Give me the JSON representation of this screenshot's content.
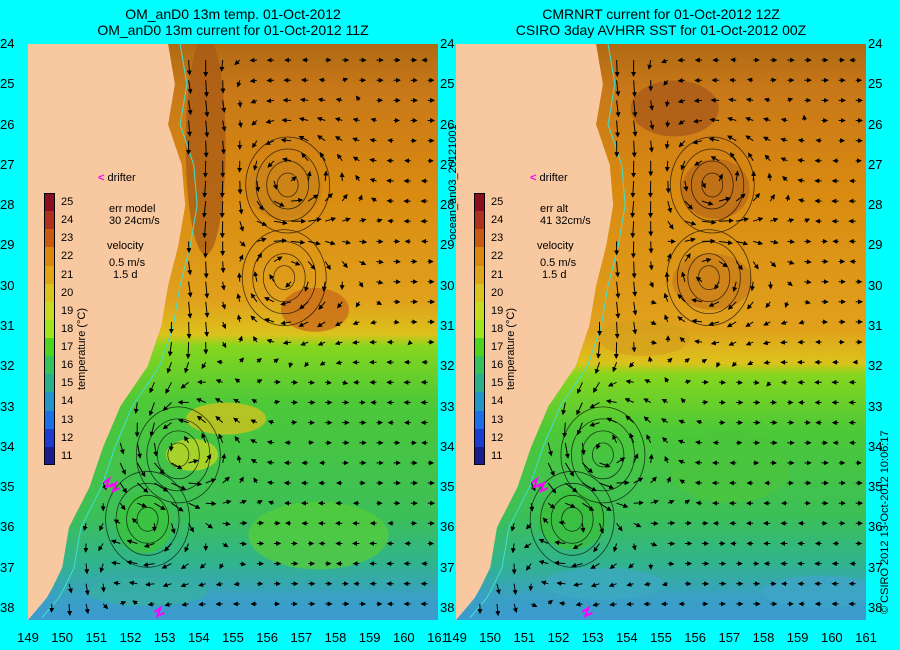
{
  "panels": [
    {
      "title_line1": "OM_anD0 13m temp. 01-Oct-2012",
      "title_line2": "OM_anD0 13m current for 01-Oct-2012 11Z",
      "drifter_label": "drifter",
      "err_line1": "err model",
      "err_line2": "30 24cm/s",
      "velocity_label": "velocity",
      "velocity_scale1": "0.5 m/s",
      "velocity_scale2": "1.5 d",
      "temperature_front_lat": -31.5
    },
    {
      "title_line1": "CMRNRT current for 01-Oct-2012 12Z",
      "title_line2": "CSIRO 3day AVHRR SST for 01-Oct-2012 00Z",
      "drifter_label": "drifter",
      "err_line1": "err alt",
      "err_line2": "41 32cm/s",
      "velocity_label": "velocity",
      "velocity_scale1": "0.5 m/s",
      "velocity_scale2": "1.5 d",
      "temperature_front_lat": -32.2
    }
  ],
  "colorbar": {
    "title": "temperature (°C)",
    "ticks": [
      "25",
      "24",
      "23",
      "22",
      "21",
      "20",
      "19",
      "18",
      "17",
      "16",
      "15",
      "14",
      "13",
      "12",
      "11"
    ],
    "colors": [
      "#8b0f1e",
      "#b0301e",
      "#c85a14",
      "#d9870e",
      "#e0a418",
      "#dcc21c",
      "#c8da20",
      "#9fe41c",
      "#4cd41e",
      "#36c25a",
      "#2aaf88",
      "#2294c6",
      "#1c6ee6",
      "#1c3cd0",
      "#1c1c8c"
    ]
  },
  "axes": {
    "lat_ticks": [
      "24",
      "25",
      "26",
      "27",
      "28",
      "29",
      "30",
      "31",
      "32",
      "33",
      "34",
      "35",
      "36",
      "37",
      "38"
    ],
    "lon_ticks": [
      "149",
      "150",
      "151",
      "152",
      "153",
      "154",
      "155",
      "156",
      "157",
      "158",
      "159",
      "160",
      "161"
    ],
    "lat_range": [
      -38.3,
      -24
    ],
    "lon_range": [
      149,
      161
    ]
  },
  "side_label_mid": "ocean_an03_20121001",
  "side_label_right": "© CSIRO 2012  13-Oct-2012 10:06:17",
  "colors": {
    "background": "#00ffff",
    "land": "#f8c8a0",
    "coastline": "#40e0d0",
    "drifter": "#ff00ff",
    "vectors": "#000000"
  },
  "eddies": [
    {
      "lon": 156.6,
      "lat": -27.5
    },
    {
      "lon": 156.5,
      "lat": -29.8
    },
    {
      "lon": 152.5,
      "lat": -35.8
    },
    {
      "lon": 153.4,
      "lat": -34.2
    }
  ]
}
